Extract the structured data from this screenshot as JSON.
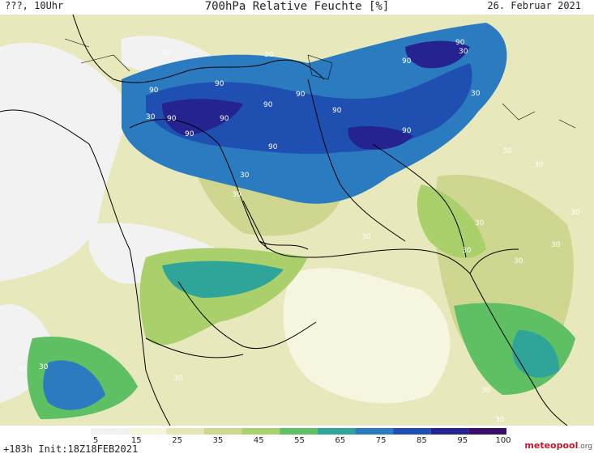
{
  "header": {
    "left": "???, 10Uhr",
    "title": "700hPa Relative Feuchte [%]",
    "date": "26. Februar 2021"
  },
  "footer": {
    "run_info": "+183h Init:18Z18FEB2021",
    "brand_main": "meteopool",
    "brand_tld": ".org"
  },
  "legend": {
    "labels": [
      "5",
      "15",
      "25",
      "35",
      "45",
      "55",
      "65",
      "75",
      "85",
      "95",
      "100"
    ],
    "colors": [
      "#f2f2f2",
      "#f5f5dc",
      "#e6e6b4",
      "#cfd68f",
      "#a9d06a",
      "#5fbf63",
      "#2fa59a",
      "#2b7bc0",
      "#1f4fb0",
      "#24238f",
      "#3a0f6b"
    ]
  },
  "map_labels": [
    "90",
    "90",
    "90",
    "90",
    "90",
    "90",
    "90",
    "90",
    "90",
    "90",
    "90",
    "90",
    "30",
    "30",
    "30",
    "30",
    "30",
    "30",
    "30",
    "30",
    "30",
    "30",
    "30",
    "30",
    "30",
    "30",
    "30",
    "30",
    "30",
    "30",
    "30",
    "30"
  ],
  "colors": {
    "dry": "#f2f2f2",
    "low": "#e6e6b4",
    "mid": "#a9d06a",
    "high": "#2b7bc0",
    "very_high": "#1f4fb0",
    "max": "#24238f"
  }
}
